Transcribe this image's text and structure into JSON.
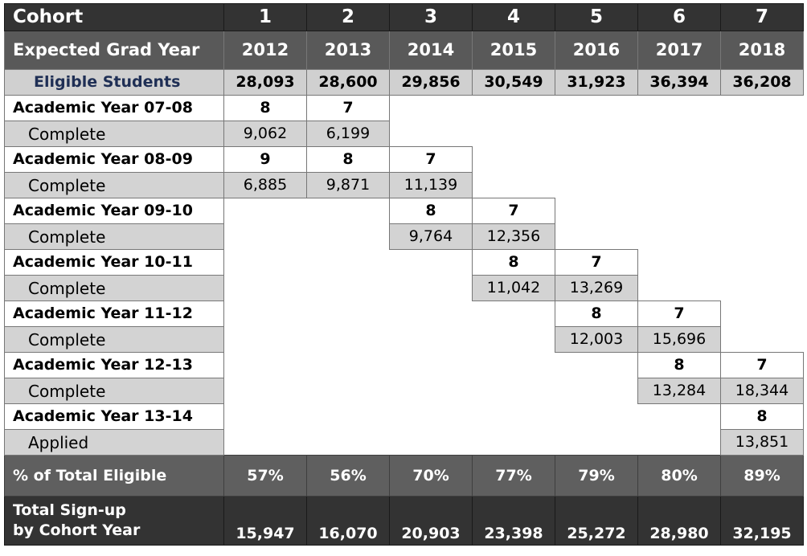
{
  "header": {
    "cohort_label": "Cohort",
    "cohorts": [
      "1",
      "2",
      "3",
      "4",
      "5",
      "6",
      "7"
    ],
    "grad_year_label": "Expected Grad Year",
    "grad_years": [
      "2012",
      "2013",
      "2014",
      "2015",
      "2016",
      "2017",
      "2018"
    ],
    "eligible_label": "Eligible Students",
    "eligible": [
      "28,093",
      "28,600",
      "29,856",
      "30,549",
      "31,923",
      "36,394",
      "36,208"
    ]
  },
  "academic_years": [
    {
      "label": "Academic Year 07-08",
      "sub_label": "Complete",
      "start": 0,
      "grades": [
        "8",
        "7"
      ],
      "counts": [
        "9,062",
        "6,199"
      ]
    },
    {
      "label": "Academic Year 08-09",
      "sub_label": "Complete",
      "start": 0,
      "grades": [
        "9",
        "8",
        "7"
      ],
      "counts": [
        "6,885",
        "9,871",
        "11,139"
      ]
    },
    {
      "label": "Academic Year 09-10",
      "sub_label": "Complete",
      "start": 2,
      "grades": [
        "8",
        "7"
      ],
      "counts": [
        "9,764",
        "12,356"
      ]
    },
    {
      "label": "Academic Year 10-11",
      "sub_label": "Complete",
      "start": 3,
      "grades": [
        "8",
        "7"
      ],
      "counts": [
        "11,042",
        "13,269"
      ]
    },
    {
      "label": "Academic Year 11-12",
      "sub_label": "Complete",
      "start": 4,
      "grades": [
        "8",
        "7"
      ],
      "counts": [
        "12,003",
        "15,696"
      ]
    },
    {
      "label": "Academic Year 12-13",
      "sub_label": "Complete",
      "start": 5,
      "grades": [
        "8",
        "7"
      ],
      "counts": [
        "13,284",
        "18,344"
      ]
    },
    {
      "label": "Academic Year 13-14",
      "sub_label": "Applied",
      "start": 6,
      "grades": [
        "8"
      ],
      "counts": [
        "13,851"
      ]
    }
  ],
  "footer": {
    "pct_label": "% of Total Eligible",
    "pct": [
      "57%",
      "56%",
      "70%",
      "77%",
      "79%",
      "80%",
      "89%"
    ],
    "total_label_line1": "Total Sign-up",
    "total_label_line2": "by Cohort Year",
    "totals": [
      "15,947",
      "16,070",
      "20,903",
      "23,398",
      "25,272",
      "28,980",
      "32,195"
    ]
  }
}
